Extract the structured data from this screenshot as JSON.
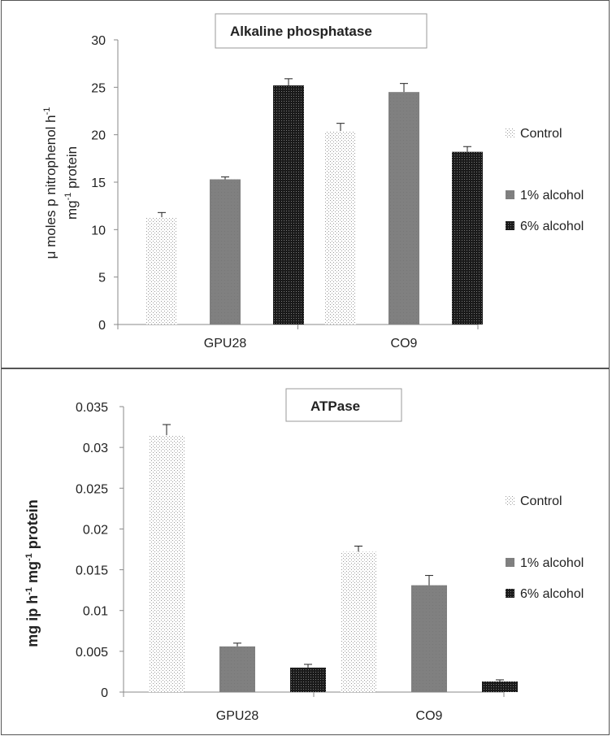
{
  "chart_data": [
    {
      "type": "bar",
      "title": "Alkaline phosphatase",
      "categories": [
        "GPU28",
        "CO9"
      ],
      "series": [
        {
          "name": "Control",
          "values": [
            11.3,
            20.4
          ],
          "errors": [
            0.5,
            0.8
          ],
          "pattern": "dots"
        },
        {
          "name": "1% alcohol",
          "values": [
            15.3,
            24.5
          ],
          "errors": [
            0.25,
            0.9
          ],
          "pattern": "gray"
        },
        {
          "name": "6% alcohol",
          "values": [
            25.2,
            18.2
          ],
          "errors": [
            0.7,
            0.55
          ],
          "pattern": "dark"
        }
      ],
      "ylabel_line1": "μ moles p nitrophenol h",
      "ylabel_line1_sup": "-1",
      "ylabel_line2_pre": "mg",
      "ylabel_line2_sup": "-1",
      "ylabel_line2_post": " protein",
      "ylim": [
        0,
        30
      ],
      "yticks": [
        "0",
        "5",
        "10",
        "15",
        "20",
        "25",
        "30"
      ],
      "legend": [
        "Control",
        "1% alcohol",
        "6% alcohol"
      ],
      "legend_position": "right"
    },
    {
      "type": "bar",
      "title": "ATPase",
      "categories": [
        "GPU28",
        "CO9"
      ],
      "series": [
        {
          "name": "Control",
          "values": [
            0.0315,
            0.0172
          ],
          "errors": [
            0.0013,
            0.0007
          ],
          "pattern": "dots"
        },
        {
          "name": "1% alcohol",
          "values": [
            0.0056,
            0.0131
          ],
          "errors": [
            0.0004,
            0.0012
          ],
          "pattern": "gray"
        },
        {
          "name": "6% alcohol",
          "values": [
            0.003,
            0.0013
          ],
          "errors": [
            0.0004,
            0.0002
          ],
          "pattern": "dark"
        }
      ],
      "ylabel_pre": "mg ip h",
      "ylabel_sup1": "-1",
      "ylabel_mid": " mg",
      "ylabel_sup2": "-1",
      "ylabel_post": " protein",
      "ylim": [
        0,
        0.035
      ],
      "yticks": [
        "0",
        "0.005",
        "0.01",
        "0.015",
        "0.02",
        "0.025",
        "0.03",
        "0.035"
      ],
      "legend": [
        "Control",
        "1% alcohol",
        "6% alcohol"
      ],
      "legend_position": "right"
    }
  ]
}
